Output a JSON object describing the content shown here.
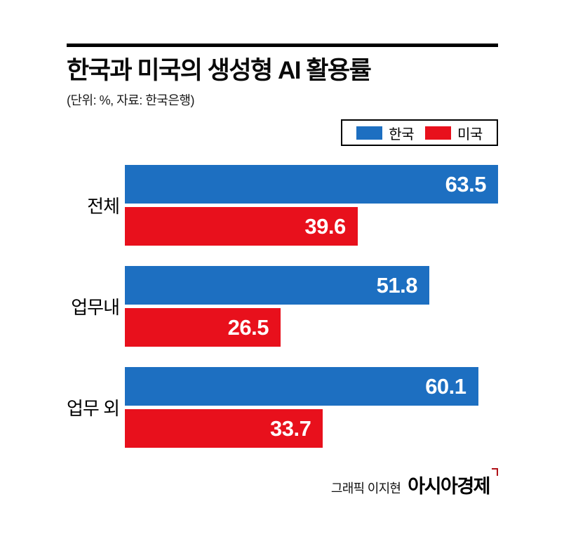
{
  "header": {
    "title": "한국과 미국의 생성형 AI 활용률",
    "subtitle": "(단위: %, 자료: 한국은행)"
  },
  "legend": [
    {
      "label": "한국",
      "color": "#1d6fc1"
    },
    {
      "label": "미국",
      "color": "#e8101c"
    }
  ],
  "chart_data": {
    "type": "bar",
    "orientation": "horizontal",
    "title": "한국과 미국의 생성형 AI 활용률",
    "unit": "%",
    "source": "한국은행",
    "categories": [
      "전체",
      "업무내",
      "업무 외"
    ],
    "series": [
      {
        "name": "한국",
        "color": "#1d6fc1",
        "values": [
          63.5,
          51.8,
          60.1
        ]
      },
      {
        "name": "미국",
        "color": "#e8101c",
        "values": [
          39.6,
          26.5,
          33.7
        ]
      }
    ],
    "xlim": [
      0,
      63.5
    ],
    "grid": false,
    "legend_position": "top-right",
    "value_labels": "inside-end"
  },
  "footer": {
    "credit": "그래픽 이지현",
    "brand": "아시아경제"
  }
}
